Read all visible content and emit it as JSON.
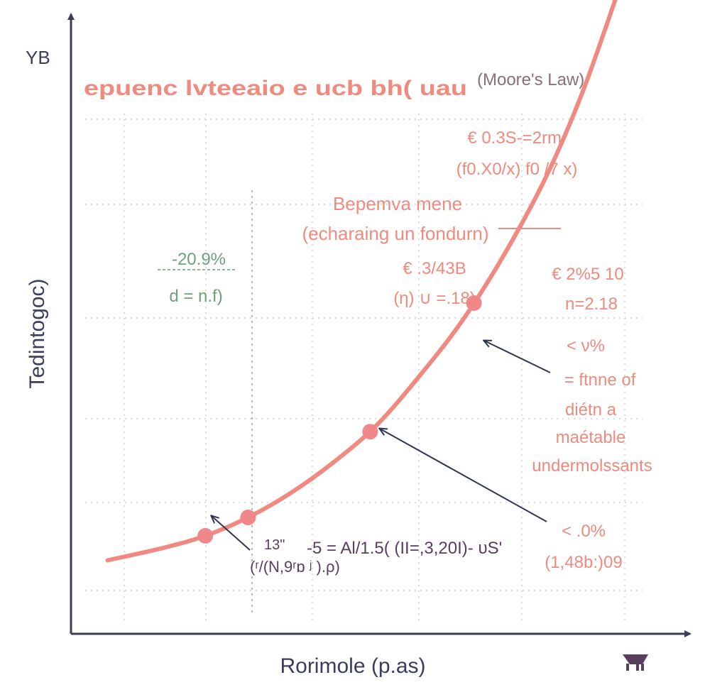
{
  "colors": {
    "curve": "#f08a80",
    "point": "#f0878a",
    "axis": "#3a3d5c",
    "grid": "#cfd0d6",
    "annotation_salmon": "#ef8a7e",
    "annotation_green": "#6f9f7c",
    "annotation_mauve": "#8a6f78",
    "arrow": "#2f3450"
  },
  "chart_data": {
    "type": "line",
    "title": "epuenc lvteeaio e ucb bh( uau",
    "title_suffix": "(Moore's Law)",
    "xlabel": "Rorimole (p.as)",
    "ylabel": "Tedintogoc)",
    "ylabel_top": "YB",
    "grid": true,
    "xlim": [
      0,
      10
    ],
    "ylim": [
      0,
      10
    ],
    "series": [
      {
        "values_xy": [
          [
            0.6,
            1.2
          ],
          [
            1.5,
            1.4
          ],
          [
            2.2,
            1.6
          ],
          [
            2.9,
            1.9
          ],
          [
            3.6,
            2.3
          ],
          [
            4.3,
            2.8
          ],
          [
            5.0,
            3.4
          ],
          [
            5.7,
            4.2
          ],
          [
            6.4,
            5.1
          ],
          [
            7.1,
            6.2
          ],
          [
            7.8,
            7.5
          ],
          [
            8.4,
            8.9
          ],
          [
            9.0,
            10.6
          ]
        ]
      }
    ],
    "highlighted_points": [
      [
        2.2,
        1.6
      ],
      [
        2.9,
        1.9
      ],
      [
        4.9,
        3.3
      ],
      [
        6.6,
        5.4
      ]
    ],
    "annotations": {
      "top_right_1": "€ 0.3S-=2rm/",
      "top_right_2": "(f0.X0/x) f0 /7 x)",
      "mid_1": "Bepemva mene",
      "mid_2": "(echaraing un fondurn)",
      "mid_3": "€ .3/43B",
      "mid_4": "(η) ∪ =.18)",
      "left_1": "-20.9%",
      "left_2": "d = n.f)",
      "right_1": "€ 2%5 10",
      "right_2": "n=2.18",
      "right_3": "< ν%",
      "right_4": "= ftnne of",
      "right_5": "diétn a",
      "right_6": "maétable",
      "right_7": "undermolssants",
      "bottom_right_1": "< .0%",
      "bottom_right_2": "(1,48b:)09",
      "bottom_1": "-5 = Al/1.5( (II=,3,20I)- υS'",
      "bottom_2": "13\"",
      "bottom_3": "(ʳ/(N,9ʳɒ ʲ ).ρ)"
    }
  }
}
